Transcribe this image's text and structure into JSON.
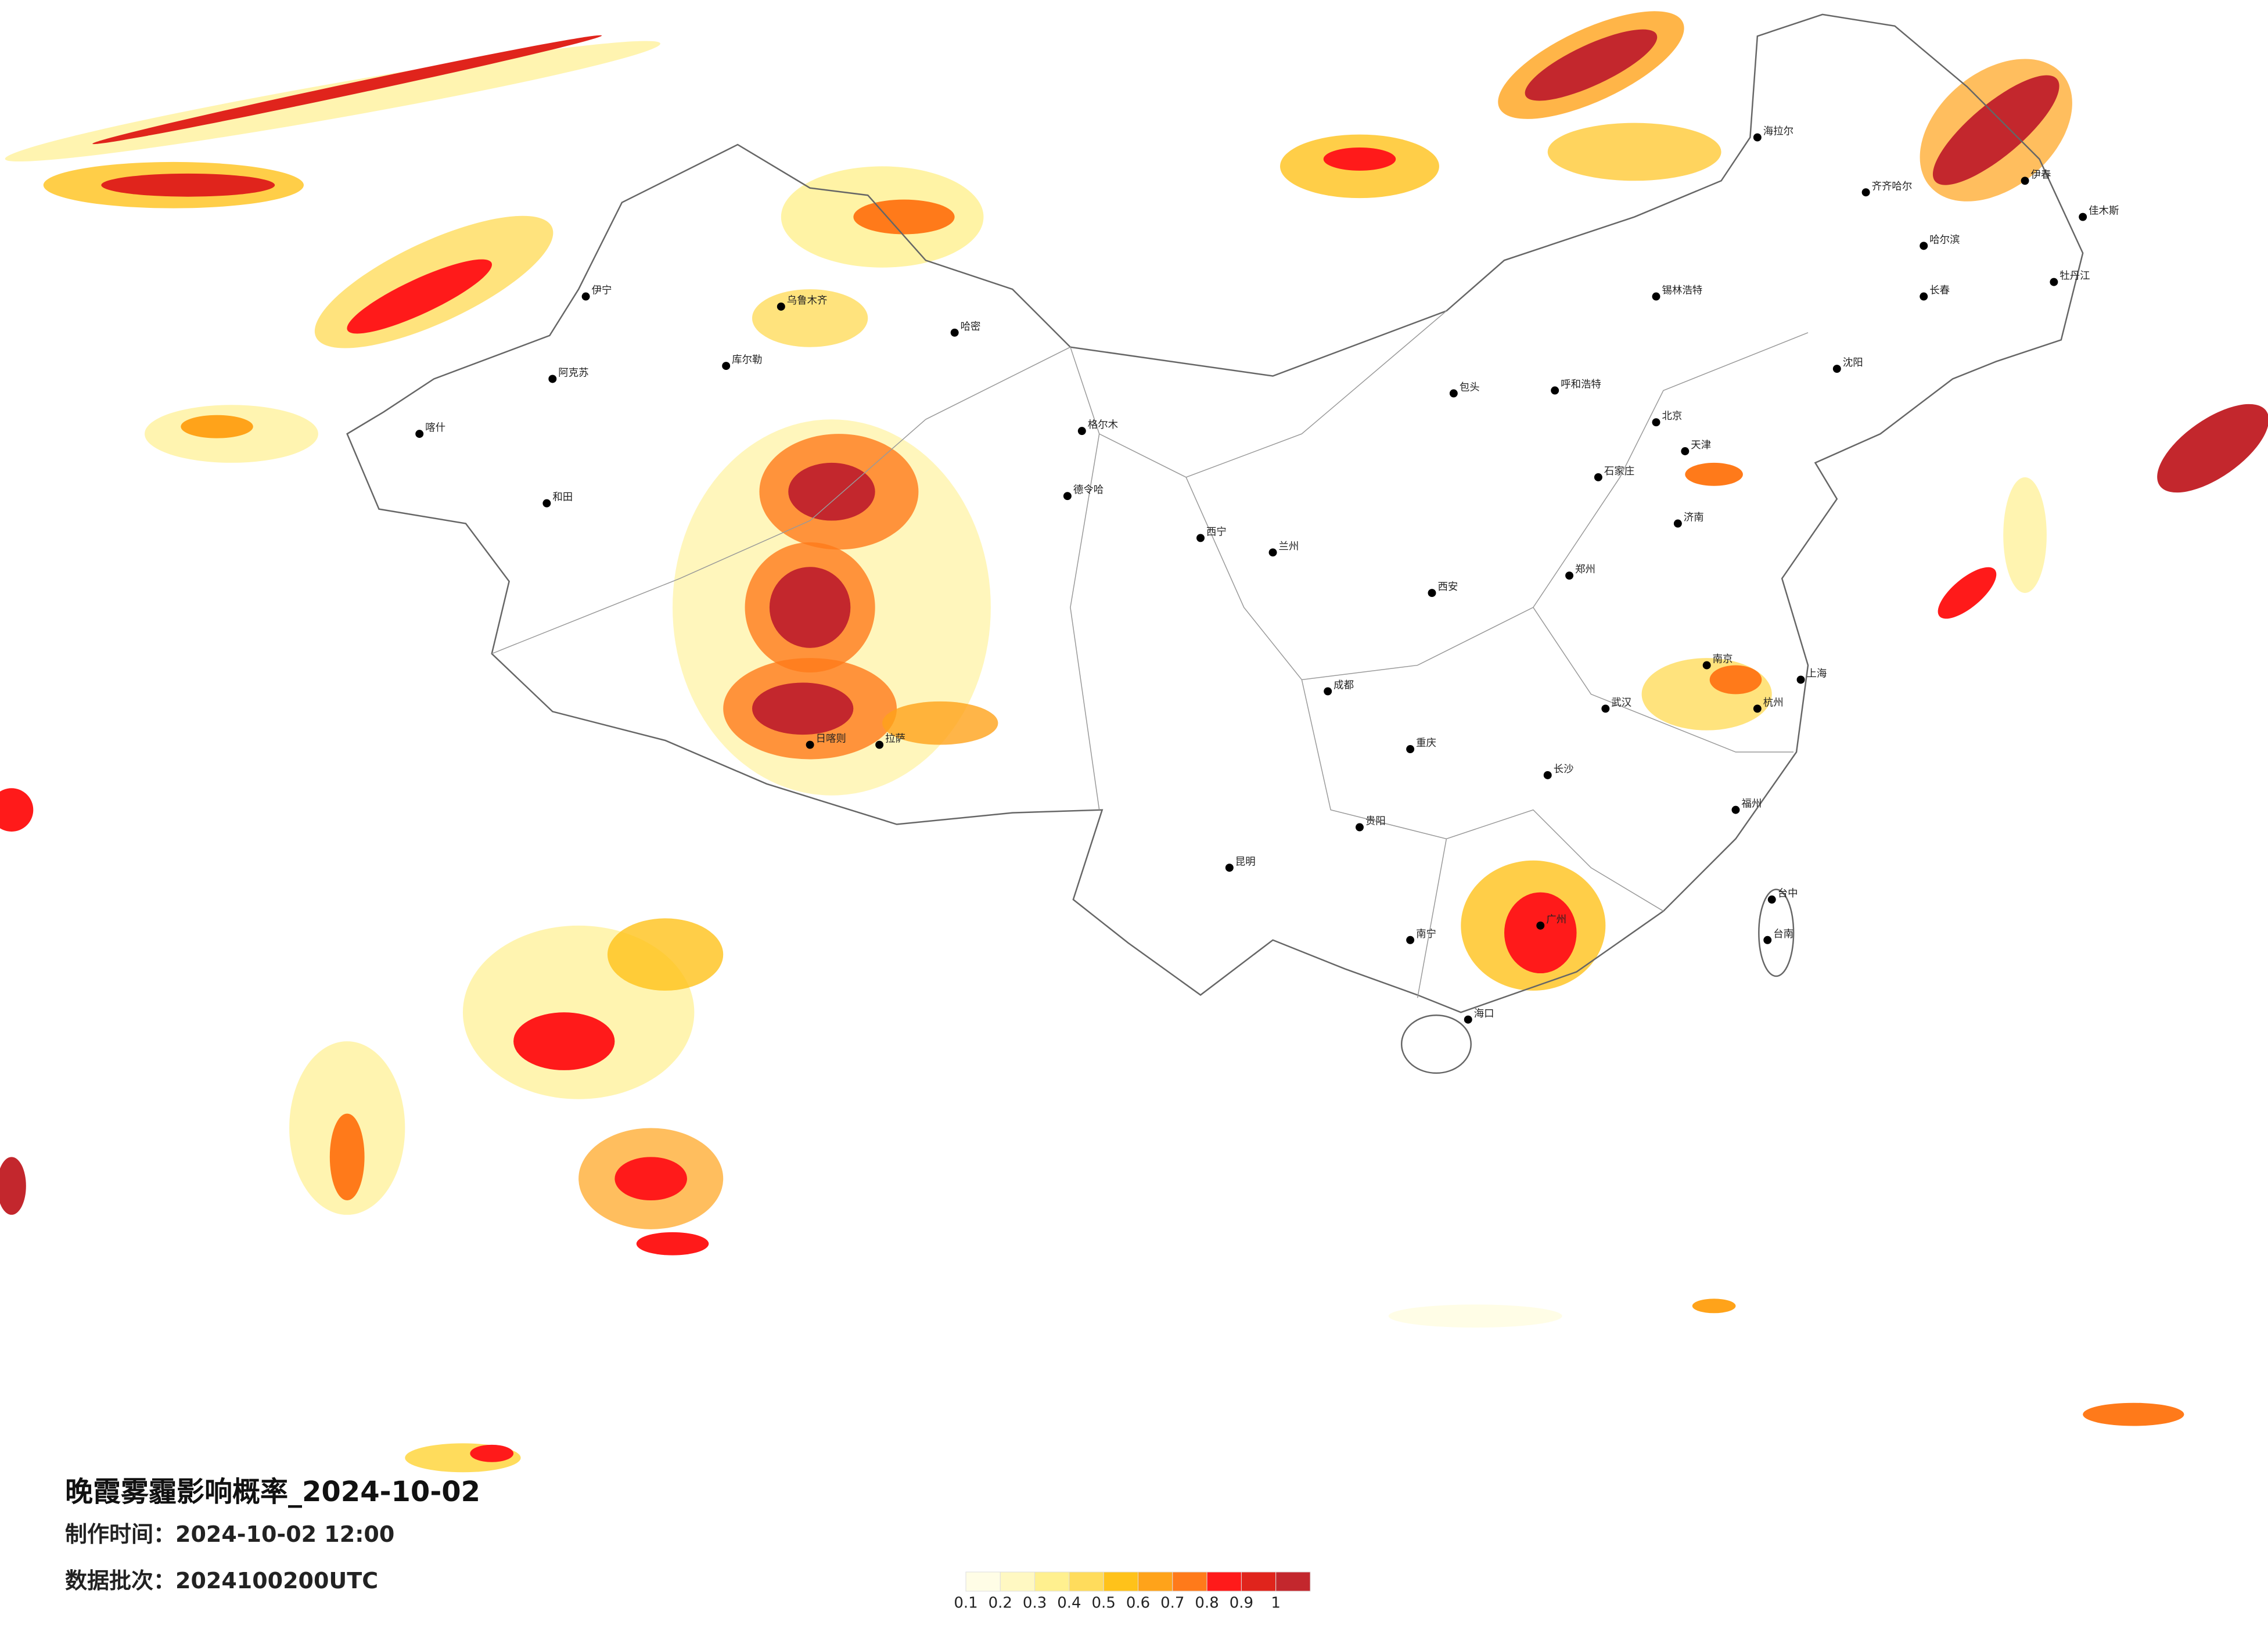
{
  "title": "晚霞雾霾影响概率_2024-10-02",
  "production_time": {
    "label": "制作时间：",
    "value": "2024-10-02 12:00"
  },
  "data_batch": {
    "label": "数据批次：",
    "value": "2024100200UTC"
  },
  "legend": {
    "colors": [
      "#fffde6",
      "#fff8c2",
      "#fff08f",
      "#ffdc5c",
      "#ffc21a",
      "#ffa31a",
      "#ff7a1a",
      "#ff1a1a",
      "#e0241c",
      "#c3272d"
    ],
    "ticks": [
      0.1,
      0.2,
      0.3,
      0.4,
      0.5,
      0.6,
      0.7,
      0.8,
      0.9,
      1
    ]
  },
  "cities": [
    "乌鲁木齐",
    "哈密",
    "库尔勒",
    "阿克苏",
    "和田",
    "喀什",
    "伊宁",
    "拉萨",
    "日喀则",
    "格尔木",
    "德令哈",
    "西宁",
    "兰州",
    "成都",
    "重庆",
    "昆明",
    "贵阳",
    "南宁",
    "海口",
    "广州",
    "长沙",
    "武汉",
    "郑州",
    "西安",
    "石家庄",
    "北京",
    "天津",
    "济南",
    "南京",
    "上海",
    "杭州",
    "福州",
    "台中",
    "台南",
    "呼和浩特",
    "包头",
    "锡林浩特",
    "沈阳",
    "长春",
    "哈尔滨",
    "齐齐哈尔",
    "海拉尔",
    "伊春",
    "佳木斯",
    "牡丹江"
  ]
}
